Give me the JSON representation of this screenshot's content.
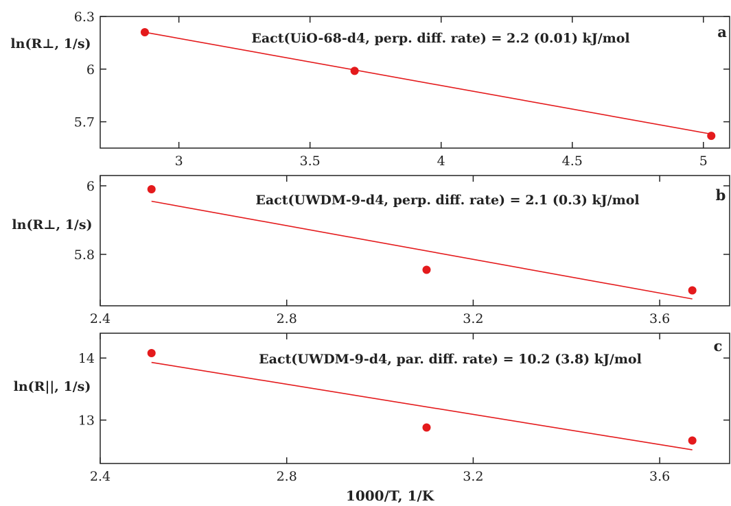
{
  "chart_data": [
    {
      "type": "scatter",
      "panel": "a",
      "annotation": "Eact(UiO-68-d4, perp. diff. rate) = 2.2 (0.01) kJ/mol",
      "ylabel": "ln(R⊥, 1/s)",
      "xlim": [
        2.7,
        5.1
      ],
      "ylim": [
        5.55,
        6.3
      ],
      "xticks": [
        3,
        3.5,
        4,
        4.5,
        5
      ],
      "xtick_labels": [
        "3",
        "3.5",
        "4",
        "4.5",
        "5"
      ],
      "yticks": [
        5.7,
        6,
        6.3
      ],
      "ytick_labels": [
        "5.7",
        "6",
        "6.3"
      ],
      "points": [
        {
          "x": 2.87,
          "y": 6.21
        },
        {
          "x": 3.67,
          "y": 5.99
        },
        {
          "x": 5.03,
          "y": 5.62
        }
      ],
      "fit": {
        "x": [
          2.87,
          5.03
        ],
        "y": [
          6.21,
          5.63
        ]
      },
      "colors": {
        "points": "#e41a1c",
        "fit": "#e41a1c"
      }
    },
    {
      "type": "scatter",
      "panel": "b",
      "annotation": "Eact(UWDM-9-d4, perp. diff. rate) = 2.1 (0.3) kJ/mol",
      "ylabel": "ln(R⊥, 1/s)",
      "xlim": [
        2.4,
        3.75
      ],
      "ylim": [
        5.65,
        6.03
      ],
      "xticks": [
        2.4,
        2.8,
        3.2,
        3.6
      ],
      "xtick_labels": [
        "2.4",
        "2.8",
        "3.2",
        "3.6"
      ],
      "yticks": [
        5.8,
        6
      ],
      "ytick_labels": [
        "5.8",
        "6"
      ],
      "points": [
        {
          "x": 2.51,
          "y": 5.99
        },
        {
          "x": 3.1,
          "y": 5.755
        },
        {
          "x": 3.67,
          "y": 5.695
        }
      ],
      "fit": {
        "x": [
          2.51,
          3.67
        ],
        "y": [
          5.955,
          5.67
        ]
      },
      "colors": {
        "points": "#e41a1c",
        "fit": "#e41a1c"
      }
    },
    {
      "type": "scatter",
      "panel": "c",
      "annotation": "Eact(UWDM-9-d4, par. diff. rate) = 10.2 (3.8) kJ/mol",
      "ylabel": "ln(R||, 1/s)",
      "xlim": [
        2.4,
        3.75
      ],
      "ylim": [
        12.3,
        14.4
      ],
      "xticks": [
        2.4,
        2.8,
        3.2,
        3.6
      ],
      "xtick_labels": [
        "2.4",
        "2.8",
        "3.2",
        "3.6"
      ],
      "yticks": [
        13,
        14
      ],
      "ytick_labels": [
        "13",
        "14"
      ],
      "points": [
        {
          "x": 2.51,
          "y": 14.08
        },
        {
          "x": 3.1,
          "y": 12.88
        },
        {
          "x": 3.67,
          "y": 12.67
        }
      ],
      "fit": {
        "x": [
          2.51,
          3.67
        ],
        "y": [
          13.93,
          12.52
        ]
      },
      "colors": {
        "points": "#e41a1c",
        "fit": "#e41a1c"
      }
    }
  ],
  "xlabel": "1000/T, 1/K"
}
